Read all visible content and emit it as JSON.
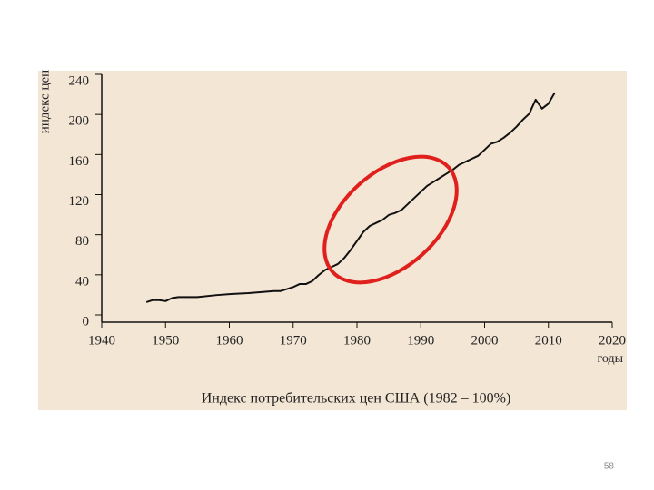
{
  "chart_data": {
    "type": "line",
    "y_label": "индекс цен",
    "x_label": "годы",
    "caption": "Индекс потребительских цен США (1982 – 100%)",
    "x": [
      1947,
      1948,
      1949,
      1950,
      1951,
      1952,
      1955,
      1958,
      1960,
      1963,
      1965,
      1967,
      1968,
      1970,
      1971,
      1972,
      1973,
      1974,
      1975,
      1976,
      1977,
      1978,
      1979,
      1980,
      1981,
      1982,
      1983,
      1984,
      1985,
      1986,
      1987,
      1988,
      1989,
      1990,
      1991,
      1992,
      1993,
      1994,
      1995,
      1996,
      1997,
      1998,
      1999,
      2000,
      2001,
      2002,
      2003,
      2004,
      2005,
      2006,
      2007,
      2008,
      2009,
      2010,
      2011
    ],
    "series": [
      {
        "color": "#111111",
        "values": [
          20,
          22,
          22,
          21,
          24,
          25,
          25,
          27,
          28,
          29,
          30,
          31,
          31,
          35,
          38,
          38,
          41,
          47,
          52,
          55,
          58,
          64,
          72,
          81,
          90,
          96,
          99,
          102,
          107,
          109,
          112,
          118,
          124,
          130,
          136,
          140,
          144,
          148,
          152,
          157,
          160,
          163,
          166,
          172,
          178,
          180,
          184,
          189,
          195,
          202,
          208,
          222,
          213,
          218,
          229
        ]
      }
    ],
    "xlim": [
      1940,
      2020
    ],
    "xticks": [
      1940,
      1950,
      1960,
      1970,
      1980,
      1990,
      2000,
      2010,
      2020
    ],
    "ylim": [
      0,
      240
    ],
    "yticks": [
      0,
      40,
      80,
      120,
      160,
      200,
      240
    ]
  },
  "page_number": "58"
}
